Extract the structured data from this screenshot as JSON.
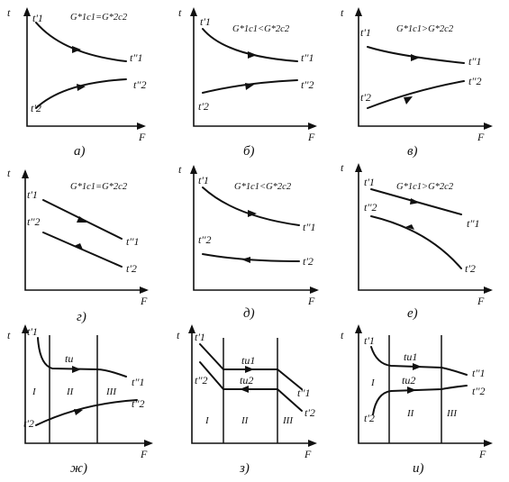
{
  "axes": {
    "y_label": "t",
    "x_label": "F"
  },
  "panels": [
    {
      "caption": "а)",
      "condition": "G*1c1=G*2c2",
      "labels": [
        "t'1",
        "t''1",
        "t'2",
        "t''2"
      ]
    },
    {
      "caption": "б)",
      "condition": "G*1c1<G*2c2",
      "labels": [
        "t'1",
        "t''1",
        "t'2",
        "t''2"
      ]
    },
    {
      "caption": "в)",
      "condition": "G*1c1>G*2c2",
      "labels": [
        "t'1",
        "t''1",
        "t'2",
        "t''2"
      ]
    },
    {
      "caption": "г)",
      "condition": "G*1c1=G*2c2",
      "labels": [
        "t'1",
        "t''1",
        "t''2",
        "t'2"
      ]
    },
    {
      "caption": "д)",
      "condition": "G*1c1<G*2c2",
      "labels": [
        "t'1",
        "t''1",
        "t''2",
        "t'2"
      ]
    },
    {
      "caption": "е)",
      "condition": "G*1c1>G*2c2",
      "labels": [
        "t'1",
        "t''1",
        "t''2",
        "t'2"
      ]
    },
    {
      "caption": "ж)",
      "labels": [
        "t'1",
        "t''1",
        "t'2",
        "t''2"
      ],
      "levels": [
        "tи"
      ],
      "zones": [
        "I",
        "II",
        "III"
      ]
    },
    {
      "caption": "з)",
      "labels": [
        "t'1",
        "t''1",
        "t''2",
        "t'2"
      ],
      "levels": [
        "tи1",
        "tи2"
      ],
      "zones": [
        "I",
        "II",
        "III"
      ]
    },
    {
      "caption": "и)",
      "labels": [
        "t'1",
        "t''1",
        "t'2",
        "t''2"
      ],
      "levels": [
        "tи1",
        "tи2"
      ],
      "zones": [
        "I",
        "II",
        "III"
      ]
    }
  ]
}
